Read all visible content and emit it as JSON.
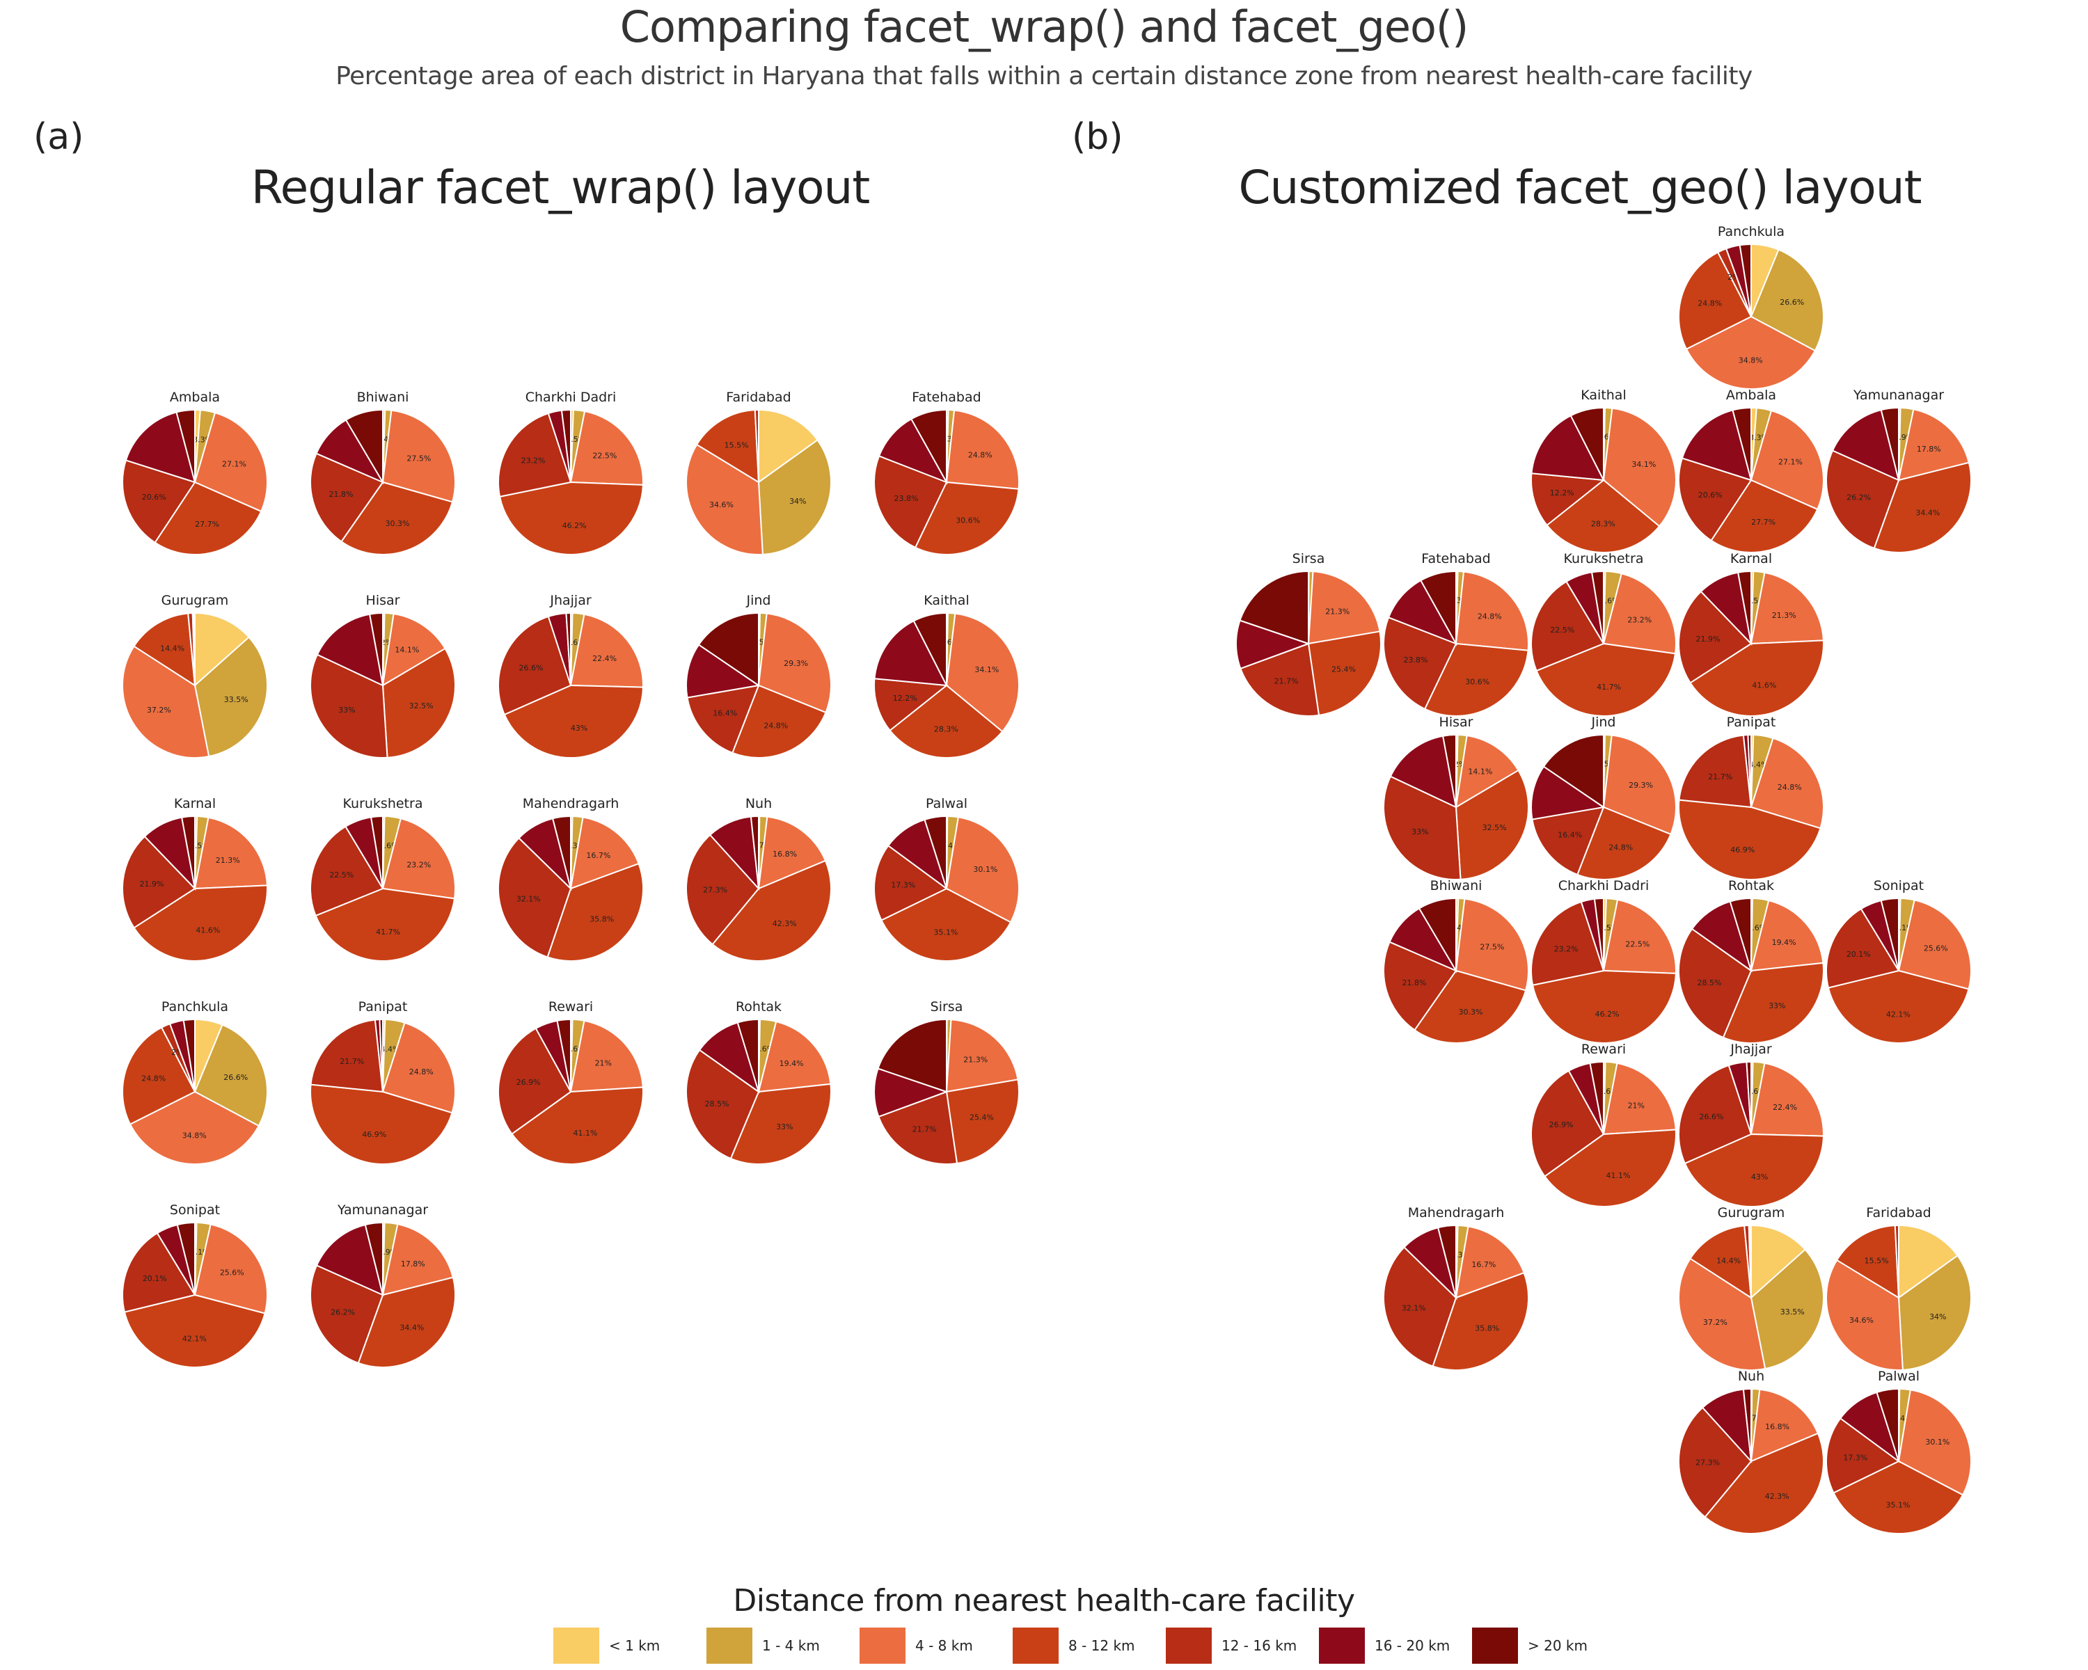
{
  "header": {
    "title": "Comparing facet_wrap() and facet_geo()",
    "subtitle": "Percentage area of each district in Haryana that falls within a certain distance zone from nearest health-care facility"
  },
  "panels": {
    "a": {
      "tag": "(a)",
      "title": "Regular facet_wrap() layout"
    },
    "b": {
      "tag": "(b)",
      "title": "Customized facet_geo() layout"
    }
  },
  "chart_data": {
    "type": "pie",
    "title": "Comparing facet_wrap() and facet_geo()",
    "subtitle": "Percentage area of each district in Haryana that falls within a certain distance zone from nearest health-care facility",
    "categories": [
      "< 1 km",
      "1 - 4 km",
      "4 - 8 km",
      "8 - 12 km",
      "12 - 16 km",
      "16 - 20 km",
      "> 20 km"
    ],
    "colors": [
      "#f9cc64",
      "#d0a33b",
      "#ec6d40",
      "#c94016",
      "#b72d15",
      "#8e0a1a",
      "#7a0a06"
    ],
    "legend": {
      "title": "Distance from nearest health-care facility",
      "position": "bottom"
    },
    "districts": {
      "Ambala": [
        1.2,
        3.3,
        27.1,
        27.7,
        20.6,
        16.0,
        4.1
      ],
      "Bhiwani": [
        0.5,
        1.4,
        27.5,
        30.3,
        21.8,
        10.0,
        8.5
      ],
      "Charkhi Dadri": [
        0.6,
        2.5,
        22.5,
        46.2,
        23.2,
        3.0,
        2.0
      ],
      "Faridabad": [
        15.1,
        34.0,
        34.6,
        15.5,
        0.8,
        0.0,
        0.0
      ],
      "Fatehabad": [
        0.4,
        1.3,
        24.8,
        30.6,
        23.8,
        11.0,
        8.1
      ],
      "Gurugram": [
        13.4,
        33.5,
        37.2,
        14.4,
        1.0,
        0.3,
        0.2
      ],
      "Hisar": [
        0.4,
        2.0,
        14.1,
        32.5,
        33.0,
        15.1,
        2.9
      ],
      "Jhajjar": [
        0.4,
        2.6,
        22.4,
        43.0,
        26.6,
        4.0,
        1.0
      ],
      "Jind": [
        0.3,
        1.5,
        29.3,
        24.8,
        16.4,
        12.2,
        15.5
      ],
      "Kaithal": [
        0.3,
        1.6,
        34.1,
        28.3,
        12.2,
        16.0,
        7.5
      ],
      "Karnal": [
        0.5,
        2.5,
        21.3,
        41.6,
        21.9,
        9.3,
        2.9
      ],
      "Kurukshetra": [
        0.4,
        3.6,
        23.2,
        41.7,
        22.5,
        6.0,
        2.6
      ],
      "Mahendragarh": [
        0.4,
        2.3,
        16.7,
        35.8,
        32.1,
        8.7,
        4.0
      ],
      "Nuh": [
        0.2,
        1.7,
        16.8,
        42.3,
        27.3,
        10.0,
        1.7
      ],
      "Palwal": [
        0.2,
        2.4,
        30.1,
        35.1,
        17.3,
        10.0,
        4.9
      ],
      "Panchkula": [
        6.2,
        26.6,
        34.8,
        24.8,
        2.0,
        3.1,
        2.5
      ],
      "Panipat": [
        0.5,
        4.4,
        24.8,
        46.9,
        21.7,
        1.0,
        0.7
      ],
      "Rewari": [
        0.4,
        2.6,
        21.0,
        41.1,
        26.9,
        5.0,
        3.0
      ],
      "Rohtak": [
        0.3,
        3.6,
        19.4,
        33.0,
        28.5,
        10.5,
        4.7
      ],
      "Sirsa": [
        0.1,
        0.9,
        21.3,
        25.4,
        21.7,
        10.8,
        19.8
      ],
      "Sonipat": [
        0.4,
        3.1,
        25.6,
        42.1,
        20.1,
        4.8,
        3.9
      ],
      "Yamunanagar": [
        0.4,
        2.9,
        17.8,
        34.4,
        26.2,
        14.4,
        3.9
      ]
    },
    "wrap_layout": {
      "columns": 5,
      "order": [
        "Ambala",
        "Bhiwani",
        "Charkhi Dadri",
        "Faridabad",
        "Fatehabad",
        "Gurugram",
        "Hisar",
        "Jhajjar",
        "Jind",
        "Kaithal",
        "Karnal",
        "Kurukshetra",
        "Mahendragarh",
        "Nuh",
        "Palwal",
        "Panchkula",
        "Panipat",
        "Rewari",
        "Rohtak",
        "Sirsa",
        "Sonipat",
        "Yamunanagar"
      ]
    },
    "geo_layout": [
      {
        "name": "Panchkula",
        "row": 1,
        "col": 4
      },
      {
        "name": "Kaithal",
        "row": 2,
        "col": 3
      },
      {
        "name": "Ambala",
        "row": 2,
        "col": 4
      },
      {
        "name": "Yamunanagar",
        "row": 2,
        "col": 5
      },
      {
        "name": "Sirsa",
        "row": 3,
        "col": 1
      },
      {
        "name": "Fatehabad",
        "row": 3,
        "col": 2
      },
      {
        "name": "Kurukshetra",
        "row": 3,
        "col": 3
      },
      {
        "name": "Karnal",
        "row": 3,
        "col": 4
      },
      {
        "name": "Hisar",
        "row": 4,
        "col": 2
      },
      {
        "name": "Jind",
        "row": 4,
        "col": 3
      },
      {
        "name": "Panipat",
        "row": 4,
        "col": 4
      },
      {
        "name": "Bhiwani",
        "row": 5,
        "col": 2
      },
      {
        "name": "Charkhi Dadri",
        "row": 5,
        "col": 3
      },
      {
        "name": "Rohtak",
        "row": 5,
        "col": 4
      },
      {
        "name": "Sonipat",
        "row": 5,
        "col": 5
      },
      {
        "name": "Rewari",
        "row": 6,
        "col": 3
      },
      {
        "name": "Jhajjar",
        "row": 6,
        "col": 4
      },
      {
        "name": "Mahendragarh",
        "row": 7,
        "col": 2
      },
      {
        "name": "Gurugram",
        "row": 7,
        "col": 4
      },
      {
        "name": "Faridabad",
        "row": 7,
        "col": 5
      },
      {
        "name": "Nuh",
        "row": 8,
        "col": 4
      },
      {
        "name": "Palwal",
        "row": 8,
        "col": 5
      }
    ]
  }
}
